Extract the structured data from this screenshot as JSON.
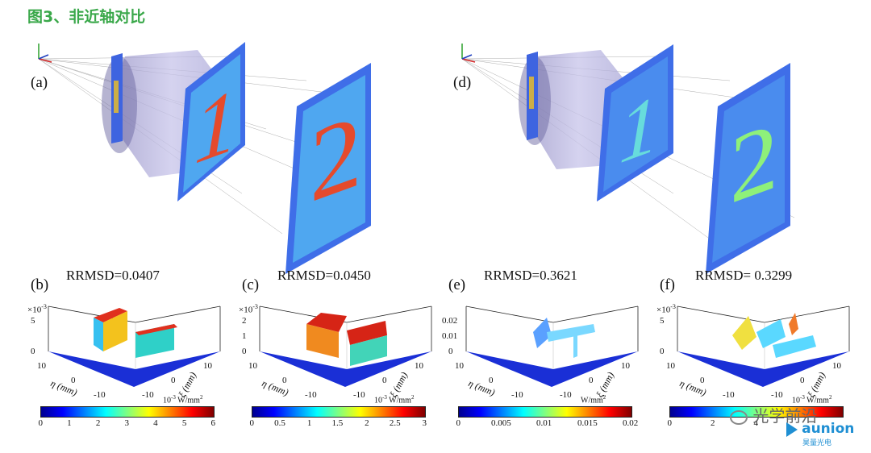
{
  "title": "图3、非近轴对比",
  "top_labels": {
    "a": "(a)",
    "d": "(d)"
  },
  "screen_digits": {
    "one": "1",
    "two": "2"
  },
  "panels": [
    {
      "label": "(b)",
      "rrmsd": "RRMSD=0.0407",
      "scale": "×10",
      "scale_exp": "-3",
      "z_ticks": [
        "5",
        "0"
      ],
      "colorbar_ticks": [
        "0",
        "1",
        "2",
        "3",
        "4",
        "5",
        "6"
      ],
      "unit": "10",
      "unit_exp": "-3",
      "unit_tail": "W/mm",
      "unit_sq": "2"
    },
    {
      "label": "(c)",
      "rrmsd": "RRMSD=0.0450",
      "scale": "×10",
      "scale_exp": "-3",
      "z_ticks": [
        "2",
        "1",
        "0"
      ],
      "colorbar_ticks": [
        "0",
        "0.5",
        "1",
        "1.5",
        "2",
        "2.5",
        "3"
      ],
      "unit": "10",
      "unit_exp": "-3",
      "unit_tail": "W/mm",
      "unit_sq": "2"
    },
    {
      "label": "(e)",
      "rrmsd": "RRMSD=0.3621",
      "scale": "",
      "scale_exp": "",
      "z_ticks": [
        "0.02",
        "0.01",
        "0"
      ],
      "colorbar_ticks": [
        "0",
        "0.005",
        "0.01",
        "0.015",
        "0.02"
      ],
      "unit": "",
      "unit_exp": "",
      "unit_tail": "W/mm",
      "unit_sq": "2"
    },
    {
      "label": "(f)",
      "rrmsd": "RRMSD= 0.3299",
      "scale": "×10",
      "scale_exp": "-3",
      "z_ticks": [
        "5",
        "0"
      ],
      "colorbar_ticks": [
        "0",
        "2",
        "4"
      ],
      "unit": "10",
      "unit_exp": "-3",
      "unit_tail": "W/mm",
      "unit_sq": "2"
    }
  ],
  "axis": {
    "eta": "η (mm)",
    "xi": "ξ (mm)",
    "t10": "10",
    "t0": "0",
    "tm10": "-10"
  },
  "watermark": {
    "wechat": "光学前沿",
    "brand": "aunion",
    "brand_cn": "昊量光电"
  },
  "colors": {
    "title": "#3aa84a",
    "screen_blue": "#3f6ee8",
    "lens": "#b9b6e3",
    "brand": "#1f8fd3"
  }
}
